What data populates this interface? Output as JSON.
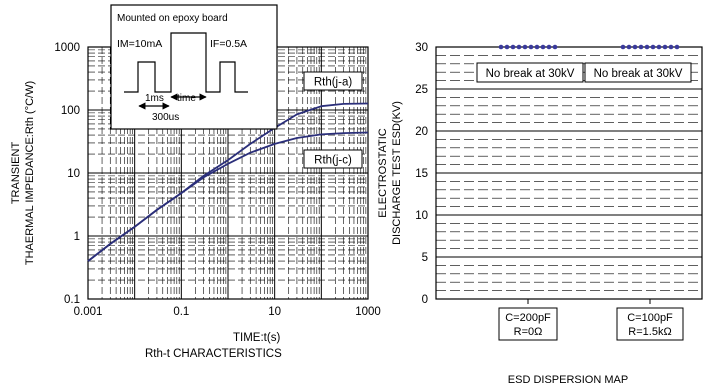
{
  "colors": {
    "curve": "#2b2f7a",
    "dots": "#3a3a9c",
    "grid": "#000000"
  },
  "chart_data": [
    {
      "type": "line",
      "title": "Rth-t CHARACTERISTICS",
      "xlabel": "TIME:t(s)",
      "ylabel_line1": "TRANSIENT",
      "ylabel_line2": "THAERMAL IMPEDANCE:Rth (°C/W)",
      "xscale": "log",
      "yscale": "log",
      "xlim": [
        0.001,
        1000
      ],
      "ylim": [
        0.1,
        1000
      ],
      "x_ticks": [
        "0.001",
        "0.1",
        "10",
        "1000"
      ],
      "y_ticks": [
        "0.1",
        "1",
        "10",
        "100",
        "1000"
      ],
      "grid": true,
      "series": [
        {
          "name": "Rth(j-a)",
          "x": [
            0.001,
            0.003,
            0.01,
            0.03,
            0.1,
            0.3,
            1,
            3,
            10,
            30,
            100,
            300,
            1000
          ],
          "y": [
            0.4,
            0.75,
            1.4,
            2.6,
            4.8,
            9,
            16,
            29,
            52,
            85,
            115,
            125,
            127
          ]
        },
        {
          "name": "Rth(j-c)",
          "x": [
            0.001,
            0.003,
            0.01,
            0.03,
            0.1,
            0.3,
            1,
            3,
            10,
            30,
            100,
            300,
            1000
          ],
          "y": [
            0.4,
            0.75,
            1.4,
            2.6,
            4.8,
            8.5,
            14,
            21,
            29,
            36,
            41,
            43,
            44
          ]
        }
      ],
      "inset": {
        "title": "Mounted on epoxy board",
        "im_label": "IM=10mA",
        "if_label": "IF=0.5A",
        "t1_label": "1ms",
        "time_label": "time",
        "t2_label": "300us"
      }
    },
    {
      "type": "scatter",
      "title": "ESD DISPERSION MAP",
      "ylabel_line1": "ELECTROSTATIC",
      "ylabel_line2": "DISCHARGE TEST ESD(KV)",
      "ylim": [
        0,
        30
      ],
      "y_ticks": [
        "0",
        "5",
        "10",
        "15",
        "20",
        "25",
        "30"
      ],
      "grid": true,
      "categories": [
        {
          "line1": "C=200pF",
          "line2": "R=0Ω"
        },
        {
          "line1": "C=100pF",
          "line2": "R=1.5kΩ"
        }
      ],
      "series": [
        {
          "category": 0,
          "value": 30,
          "count": 10
        },
        {
          "category": 1,
          "value": 30,
          "count": 10
        }
      ],
      "annotations": [
        "No break at 30kV",
        "No break at 30kV"
      ]
    }
  ]
}
